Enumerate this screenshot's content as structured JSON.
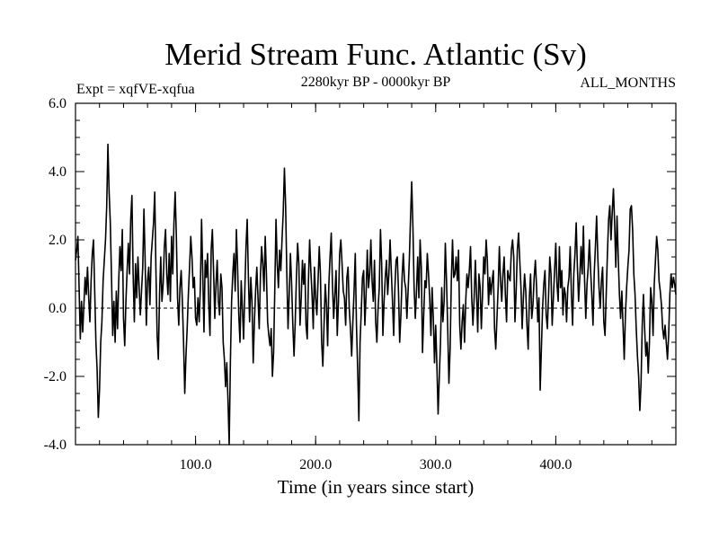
{
  "chart_data": {
    "type": "line",
    "title": "Merid Stream Func. Atlantic (Sv)",
    "subtitle_left": "Expt = xqfVE-xqfua",
    "subtitle_center": "2280kyr BP - 0000kyr BP",
    "subtitle_right": "ALL_MONTHS",
    "xlabel": "Time (in years since start)",
    "ylabel": "",
    "xlim": [
      0,
      500
    ],
    "ylim": [
      -4.0,
      6.0
    ],
    "x_ticks": [
      100,
      200,
      300,
      400
    ],
    "x_tick_labels": [
      "100.0",
      "200.0",
      "300.0",
      "400.0"
    ],
    "y_ticks": [
      -4,
      -2,
      0,
      2,
      4,
      6
    ],
    "y_tick_labels": [
      "-4.0",
      "-2.0",
      "0.0",
      "2.0",
      "4.0",
      "6.0"
    ],
    "x_minor_step": 20,
    "y_minor_step": 0.5,
    "reference_line": 0.0,
    "grid": false,
    "series": [
      {
        "name": "Merid Stream Func. Atlantic",
        "x_start": 0,
        "x_step": 1,
        "values": [
          1.4,
          1.7,
          2.1,
          0.6,
          -0.9,
          0.2,
          -0.7,
          0.1,
          0.9,
          0.4,
          1.2,
          0.3,
          -0.4,
          0.8,
          1.6,
          2.0,
          0.5,
          -1.0,
          -1.8,
          -3.2,
          -2.4,
          -1.0,
          -0.4,
          0.8,
          1.4,
          2.0,
          3.0,
          4.8,
          3.4,
          2.5,
          0.9,
          -0.8,
          0.2,
          -1.0,
          0.5,
          -0.6,
          0.8,
          1.8,
          1.1,
          2.3,
          -0.3,
          -1.1,
          0.2,
          1.1,
          1.9,
          1.0,
          2.6,
          3.3,
          1.0,
          -0.4,
          1.3,
          0.3,
          1.5,
          0.6,
          -0.2,
          0.5,
          1.2,
          2.9,
          1.4,
          -0.5,
          0.8,
          1.2,
          0.1,
          1.5,
          2.0,
          2.5,
          3.4,
          1.1,
          -0.8,
          -1.5,
          0.4,
          1.5,
          0.2,
          0.7,
          1.8,
          2.3,
          1.0,
          0.4,
          1.6,
          0.2,
          2.1,
          1.0,
          2.5,
          3.4,
          2.1,
          0.3,
          -0.5,
          0.6,
          1.1,
          0.2,
          -1.0,
          -2.5,
          -1.4,
          -0.6,
          0.4,
          1.2,
          2.1,
          1.5,
          0.6,
          0.9,
          -0.3,
          -0.5,
          0.3,
          -0.4,
          0.6,
          2.6,
          1.0,
          -0.7,
          1.4,
          0.9,
          1.6,
          0.1,
          -0.8,
          1.7,
          2.3,
          1.1,
          -0.3,
          0.7,
          1.4,
          0.2,
          -0.2,
          1.0,
          0.6,
          -1.0,
          -1.5,
          -2.3,
          -1.6,
          -2.7,
          -4.0,
          -1.6,
          0.2,
          1.0,
          1.6,
          0.5,
          2.3,
          1.2,
          -0.2,
          -1.0,
          0.8,
          0.0,
          -0.9,
          0.5,
          1.8,
          2.6,
          0.9,
          -0.4,
          0.9,
          0.2,
          -1.6,
          -0.4,
          0.5,
          1.2,
          0.3,
          -0.6,
          0.9,
          1.8,
          1.3,
          0.5,
          2.1,
          1.0,
          -0.4,
          -0.8,
          -1.1,
          -0.6,
          -2.0,
          -1.3,
          0.6,
          2.6,
          1.3,
          0.6,
          1.7,
          1.1,
          2.0,
          2.8,
          4.1,
          3.0,
          1.0,
          -0.6,
          0.4,
          1.6,
          0.7,
          -0.5,
          -1.4,
          -0.4,
          0.9,
          1.9,
          1.3,
          -0.5,
          0.3,
          1.4,
          0.7,
          1.3,
          -0.5,
          -0.9,
          0.8,
          2.0,
          1.1,
          0.4,
          -0.6,
          1.2,
          0.3,
          -0.2,
          0.8,
          1.8,
          1.0,
          -1.0,
          -1.7,
          -0.5,
          0.7,
          0.1,
          -1.1,
          0.7,
          1.5,
          2.2,
          0.7,
          -0.3,
          0.4,
          1.1,
          -0.8,
          0.2,
          1.6,
          2.0,
          1.3,
          0.5,
          0.3,
          -0.5,
          0.9,
          1.2,
          0.0,
          -0.6,
          -1.4,
          -0.4,
          0.5,
          1.6,
          -0.5,
          -1.8,
          -3.3,
          -1.0,
          -0.1,
          0.9,
          1.1,
          -0.5,
          0.4,
          1.7,
          0.6,
          1.0,
          2.0,
          0.8,
          0.2,
          1.4,
          -0.4,
          -1.0,
          0.0,
          0.6,
          2.3,
          1.3,
          -0.8,
          0.2,
          0.9,
          1.4,
          0.4,
          1.0,
          2.0,
          1.1,
          0.2,
          -0.8,
          0.6,
          1.4,
          1.5,
          0.5,
          -1.0,
          -0.2,
          0.9,
          1.6,
          0.8,
          0.6,
          -0.3,
          0.5,
          1.4,
          2.6,
          3.7,
          2.4,
          0.6,
          -0.3,
          0.5,
          1.5,
          0.3,
          2.0,
          1.2,
          -1.3,
          -0.2,
          0.8,
          0.6,
          1.6,
          1.0,
          0.3,
          -0.8,
          0.6,
          -0.3,
          -1.6,
          -0.5,
          -1.7,
          -3.1,
          -2.0,
          -1.0,
          0.6,
          -0.4,
          0.2,
          1.9,
          0.8,
          -0.6,
          -2.2,
          -1.2,
          0.8,
          2.0,
          0.9,
          1.0,
          1.5,
          0.8,
          1.7,
          -0.5,
          -1.2,
          -0.4,
          0.1,
          -1.0,
          0.2,
          1.0,
          0.6,
          1.1,
          1.8,
          0.3,
          -0.5,
          0.3,
          1.4,
          0.4,
          -0.7,
          1.0,
          0.6,
          -0.6,
          0.4,
          1.5,
          1.0,
          2.0,
          1.4,
          0.1,
          0.9,
          0.4,
          0.8,
          1.1,
          -0.6,
          -1.2,
          -0.3,
          0.6,
          1.8,
          0.8,
          0.2,
          1.0,
          1.5,
          0.4,
          -0.4,
          1.1,
          0.9,
          0.8,
          1.7,
          2.0,
          1.5,
          -0.4,
          0.5,
          1.7,
          2.2,
          1.4,
          0.6,
          -0.6,
          0.3,
          1.0,
          0.5,
          -0.5,
          -1.2,
          0.3,
          1.0,
          -0.3,
          0.1,
          0.9,
          1.4,
          0.6,
          -0.4,
          0.3,
          -2.4,
          -1.2,
          0.0,
          0.7,
          1.1,
          -0.2,
          -0.6,
          0.4,
          1.5,
          1.0,
          -0.5,
          0.3,
          1.1,
          1.9,
          0.7,
          0.2,
          1.8,
          0.6,
          1.1,
          -0.2,
          0.6,
          0.4,
          -0.4,
          0.6,
          0.9,
          1.8,
          0.4,
          -0.5,
          1.0,
          1.6,
          2.5,
          1.2,
          0.2,
          0.9,
          1.8,
          1.0,
          2.4,
          0.8,
          -0.3,
          0.7,
          1.2,
          2.0,
          1.1,
          0.4,
          -0.5,
          1.0,
          1.8,
          2.7,
          1.5,
          0.6,
          0.0,
          0.8,
          1.2,
          -0.4,
          -0.8,
          0.4,
          1.6,
          2.6,
          3.0,
          2.0,
          2.8,
          3.5,
          2.5,
          1.2,
          2.7,
          1.5,
          0.4,
          -0.3,
          0.5,
          -0.5,
          -1.5,
          -0.2,
          0.6,
          1.2,
          1.7,
          2.9,
          3.0,
          2.3,
          1.0,
          0.4,
          -0.6,
          -1.4,
          -2.0,
          -3.0,
          -2.2,
          -0.5,
          0.4,
          -0.6,
          -1.4,
          -1.0,
          -1.9,
          -1.0,
          0.6,
          0.2,
          -0.8,
          0.7,
          1.4,
          2.1,
          1.7,
          0.8,
          0.5,
          0.1,
          -0.6,
          -0.9,
          -0.5,
          -1.0,
          -1.5,
          -0.8,
          0.4,
          1.0,
          0.6,
          0.9,
          0.7,
          0.4
        ]
      }
    ]
  }
}
